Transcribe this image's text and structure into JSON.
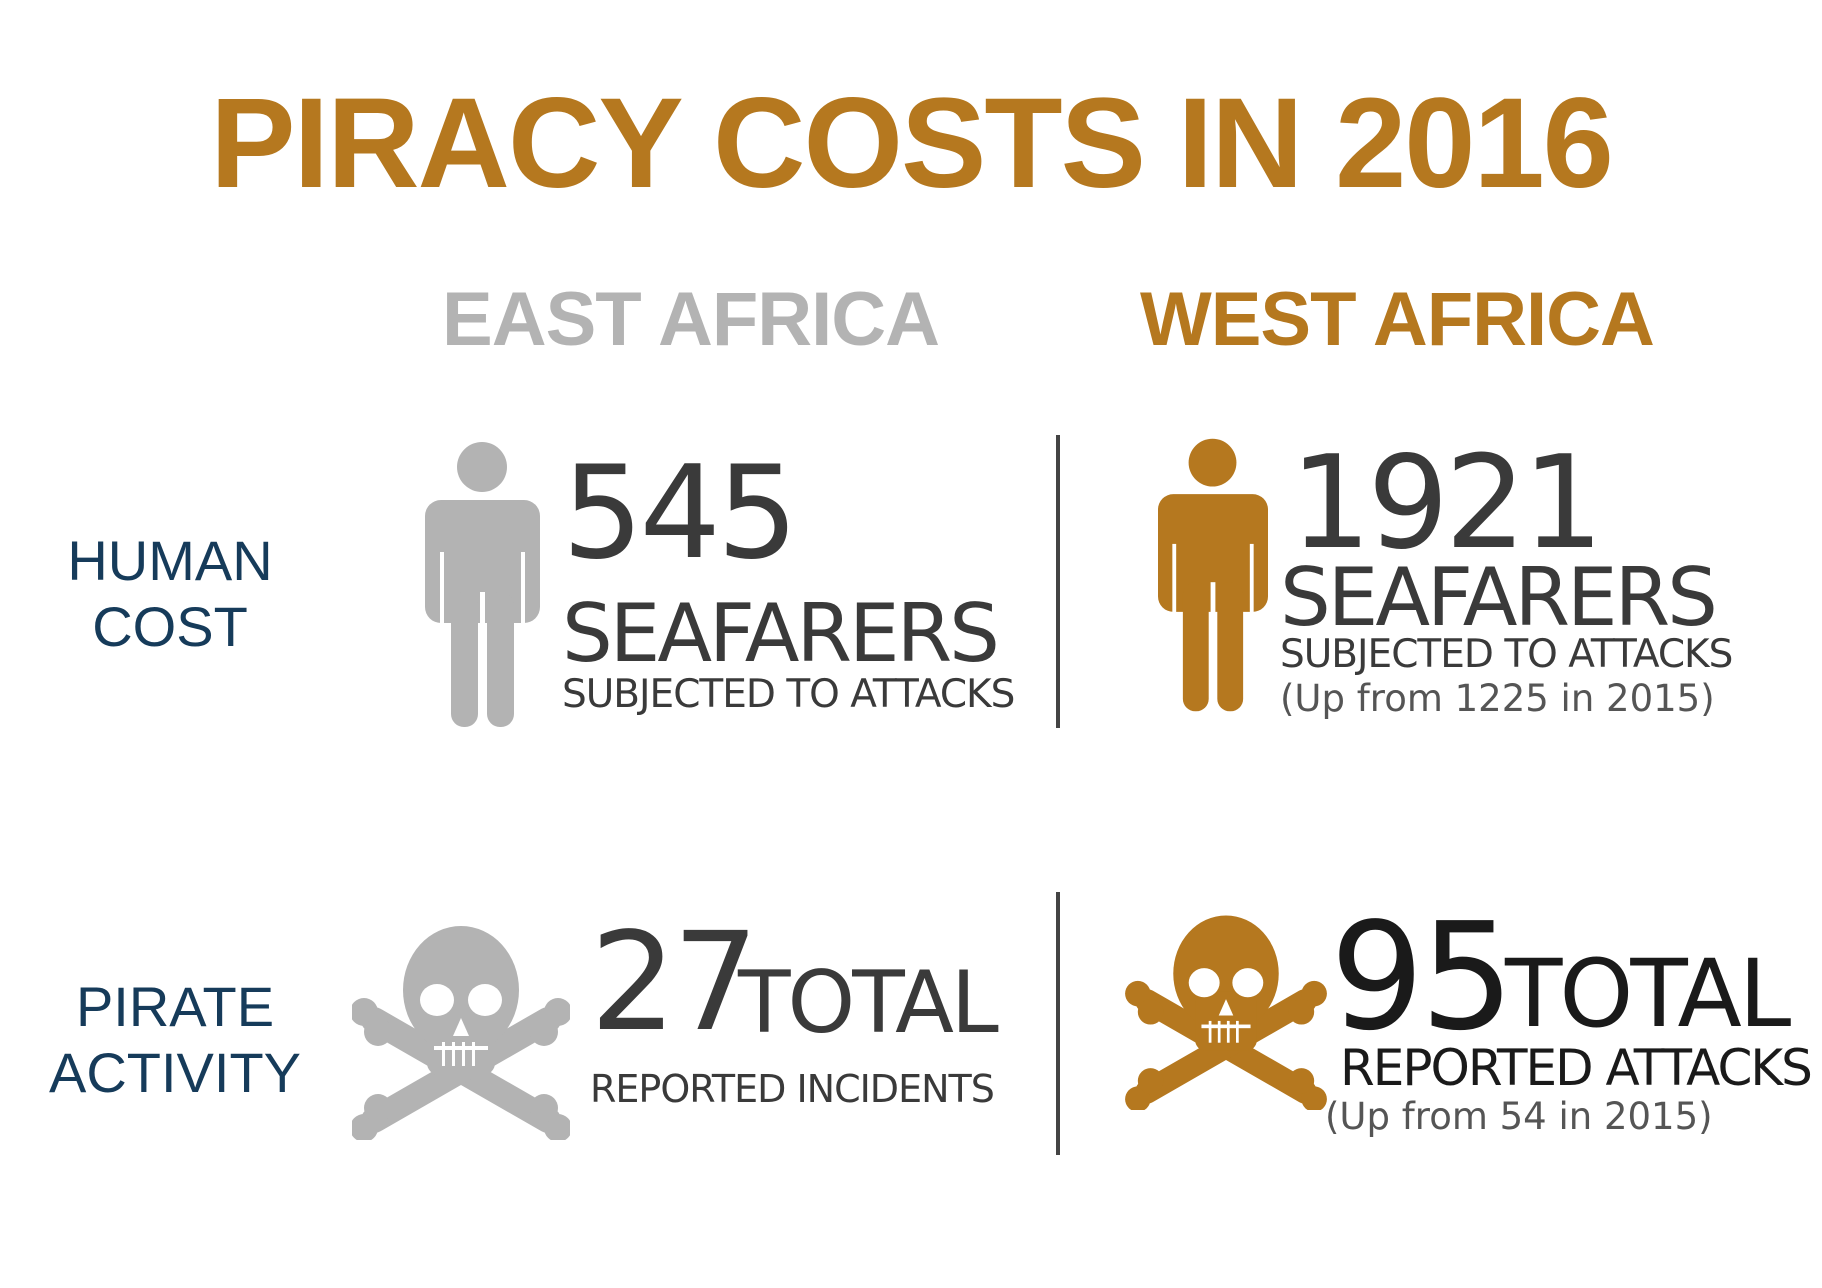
{
  "title": "PIRACY COSTS IN 2016",
  "regions": {
    "east": "EAST AFRICA",
    "west": "WEST AFRICA"
  },
  "row_labels": {
    "human_cost": "HUMAN COST",
    "pirate_activity": "PIRATE ACTIVITY"
  },
  "east": {
    "human": {
      "number": "545",
      "unit": "SEAFARERS",
      "caption": "SUBJECTED TO ATTACKS"
    },
    "pirate": {
      "number": "27",
      "unit": "TOTAL",
      "caption": "REPORTED INCIDENTS"
    }
  },
  "west": {
    "human": {
      "number": "1921",
      "unit": "SEAFARERS",
      "caption": "SUBJECTED TO ATTACKS",
      "note": "(Up from 1225 in 2015)"
    },
    "pirate": {
      "number": "95",
      "unit": "TOTAL",
      "caption": "REPORTED ATTACKS",
      "note": "(Up from 54 in 2015)"
    }
  },
  "colors": {
    "accent": "#b5781f",
    "muted": "#b3b3b3",
    "label": "#163b5a",
    "text": "#3a3a3a"
  },
  "icons": {
    "person": "person-icon",
    "skull": "skull-crossbones-icon"
  }
}
